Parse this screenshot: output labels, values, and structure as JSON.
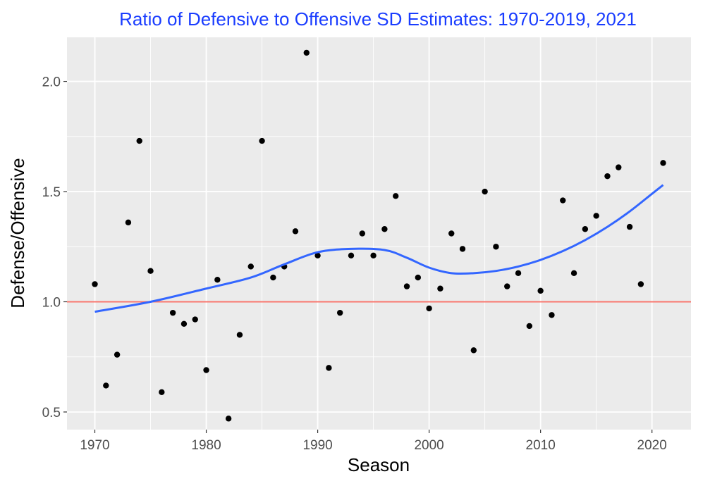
{
  "chart_data": {
    "type": "scatter",
    "title": "Ratio of Defensive to Offensive SD Estimates: 1970-2019, 2021",
    "xlabel": "Season",
    "ylabel": "Defense/Offensive",
    "xlim": [
      1967.5,
      2023.5
    ],
    "ylim": [
      0.42,
      2.2
    ],
    "x_ticks": [
      1970,
      1980,
      1990,
      2000,
      2010,
      2020
    ],
    "x_tick_labels": [
      "1970",
      "1980",
      "1990",
      "2000",
      "2010",
      "2020"
    ],
    "y_ticks": [
      0.5,
      1.0,
      1.5,
      2.0
    ],
    "y_tick_labels": [
      "0.5",
      "1.0",
      "1.5",
      "2.0"
    ],
    "grid": true,
    "reference_line": {
      "y": 1.0,
      "color": "#f8766d"
    },
    "points": {
      "color": "#000000",
      "x": [
        1970,
        1971,
        1972,
        1973,
        1974,
        1975,
        1976,
        1977,
        1978,
        1979,
        1980,
        1981,
        1982,
        1983,
        1984,
        1985,
        1986,
        1987,
        1988,
        1989,
        1990,
        1991,
        1992,
        1993,
        1994,
        1995,
        1996,
        1997,
        1998,
        1999,
        2000,
        2001,
        2002,
        2003,
        2004,
        2005,
        2006,
        2007,
        2008,
        2009,
        2010,
        2011,
        2012,
        2013,
        2014,
        2015,
        2016,
        2017,
        2018,
        2019,
        2021
      ],
      "y": [
        1.08,
        0.62,
        0.76,
        1.36,
        1.73,
        1.14,
        0.59,
        0.95,
        0.9,
        0.92,
        0.69,
        1.1,
        0.47,
        0.85,
        1.16,
        1.73,
        1.11,
        1.16,
        1.32,
        2.13,
        1.21,
        0.7,
        0.95,
        1.21,
        1.31,
        1.21,
        1.33,
        1.48,
        1.07,
        1.11,
        0.97,
        1.06,
        1.31,
        1.24,
        0.78,
        1.5,
        1.25,
        1.07,
        1.13,
        0.89,
        1.05,
        0.94,
        1.46,
        1.13,
        1.33,
        1.39,
        1.57,
        1.61,
        1.34,
        1.08,
        1.63
      ]
    },
    "smooth": {
      "color": "#3366ff",
      "x": [
        1970,
        1975,
        1980,
        1984,
        1987,
        1990,
        1993,
        1996,
        1998,
        2000,
        2002,
        2004,
        2006,
        2008,
        2010,
        2012,
        2014,
        2016,
        2018,
        2020,
        2021
      ],
      "y": [
        0.955,
        1.0,
        1.06,
        1.11,
        1.17,
        1.225,
        1.24,
        1.235,
        1.2,
        1.155,
        1.13,
        1.13,
        1.14,
        1.16,
        1.19,
        1.23,
        1.28,
        1.34,
        1.41,
        1.49,
        1.53
      ]
    },
    "title_color": "#1a3dff",
    "panel_color": "#ebebeb",
    "grid_color": "#ffffff"
  }
}
